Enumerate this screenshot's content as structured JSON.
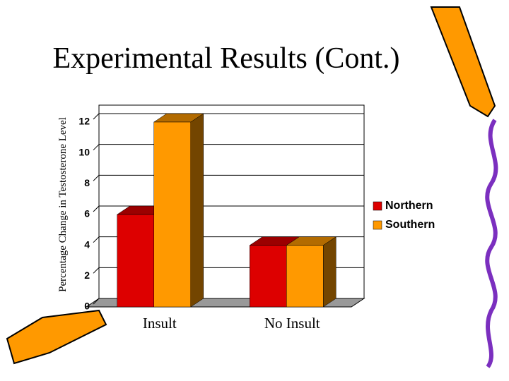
{
  "chart_data": {
    "type": "bar3d",
    "title": "Experimental Results (Cont.)",
    "y_label": "Percentage Change in Testosterone Level",
    "categories": [
      "Insult",
      "No Insult"
    ],
    "series": [
      {
        "name": "Northern",
        "color": "#dd0000",
        "values": [
          6,
          4
        ]
      },
      {
        "name": "Southern",
        "color": "#ff9900",
        "values": [
          12,
          4
        ]
      }
    ],
    "ylim": [
      0,
      12
    ],
    "yticks": [
      0,
      2,
      4,
      6,
      8,
      10,
      12
    ],
    "grid": true,
    "legend": "right"
  }
}
